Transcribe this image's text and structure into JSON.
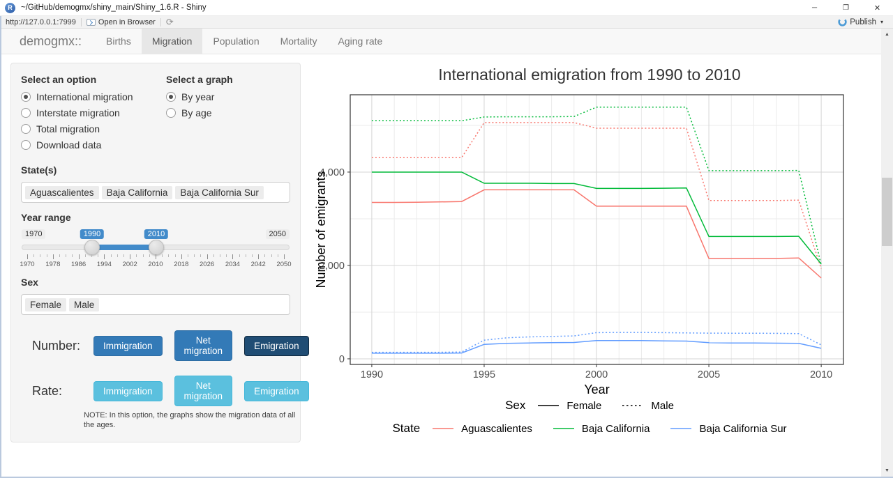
{
  "window": {
    "title": "~/GitHub/demogmx/shiny_main/Shiny_1.6.R - Shiny",
    "app_icon_letter": "R"
  },
  "icons": {
    "minimize": "─",
    "maximize": "❐",
    "close": "✕",
    "refresh": "⟳",
    "dropdown_caret": "▾",
    "scroll_up": "▲",
    "scroll_down": "▼"
  },
  "toolbar": {
    "url": "http://127.0.0.1:7999",
    "open_in_browser": "Open in Browser",
    "publish_label": "Publish"
  },
  "navbar": {
    "brand": "demogmx::",
    "tabs": [
      {
        "label": "Births",
        "active": false
      },
      {
        "label": "Migration",
        "active": true
      },
      {
        "label": "Population",
        "active": false
      },
      {
        "label": "Mortality",
        "active": false
      },
      {
        "label": "Aging rate",
        "active": false
      }
    ]
  },
  "sidebar": {
    "option_group": {
      "label": "Select an option",
      "options": [
        {
          "label": "International migration",
          "selected": true
        },
        {
          "label": "Interstate migration",
          "selected": false
        },
        {
          "label": "Total migration",
          "selected": false
        },
        {
          "label": "Download data",
          "selected": false
        }
      ]
    },
    "graph_group": {
      "label": "Select a graph",
      "options": [
        {
          "label": "By year",
          "selected": true
        },
        {
          "label": "By age",
          "selected": false
        }
      ]
    },
    "states": {
      "label": "State(s)",
      "selected": [
        "Aguascalientes",
        "Baja California",
        "Baja California Sur"
      ]
    },
    "year_range": {
      "label": "Year range",
      "min": 1970,
      "max": 2050,
      "from": 1990,
      "to": 2010,
      "tick_labels": [
        1970,
        1978,
        1986,
        1994,
        2002,
        2010,
        2018,
        2026,
        2034,
        2042,
        2050
      ]
    },
    "sex": {
      "label": "Sex",
      "selected": [
        "Female",
        "Male"
      ]
    },
    "number_row": {
      "label": "Number:",
      "buttons": [
        {
          "label": "Immigration",
          "active": false
        },
        {
          "label": "Net migration",
          "active": false
        },
        {
          "label": "Emigration",
          "active": true
        }
      ]
    },
    "rate_row": {
      "label": "Rate:",
      "buttons": [
        {
          "label": "Immigration",
          "active": false
        },
        {
          "label": "Net migration",
          "active": false
        },
        {
          "label": "Emigration",
          "active": false
        }
      ]
    },
    "note": "NOTE: In this option, the graphs show the migration data of all the ages."
  },
  "chart_data": {
    "type": "line",
    "title": "International emigration from 1990 to 2010",
    "xlabel": "Year",
    "ylabel": "Number of emigrants",
    "x": [
      1990,
      1991,
      1992,
      1993,
      1994,
      1995,
      1996,
      1997,
      1998,
      1999,
      2000,
      2001,
      2002,
      2003,
      2004,
      2005,
      2006,
      2007,
      2008,
      2009,
      2010
    ],
    "xticks": [
      1990,
      1995,
      2000,
      2005,
      2010
    ],
    "yticks": [
      0,
      2000,
      4000
    ],
    "ytick_labels": [
      "0",
      "2,000",
      "4,000"
    ],
    "yticks_minor": [
      1000,
      3000,
      5000
    ],
    "xlim": [
      1989.04,
      2010.99
    ],
    "ylim": [
      -120,
      5656
    ],
    "grid": true,
    "legend_position": "bottom",
    "colors": {
      "Aguascalientes": "#F8766D",
      "Baja California": "#00BA38",
      "Baja California Sur": "#619CFF"
    },
    "series": [
      {
        "name": "Aguascalientes Female",
        "state": "Aguascalientes",
        "sex": "Female",
        "color": "#F8766D",
        "dash": "solid",
        "values": [
          3350,
          3350,
          3355,
          3360,
          3370,
          3620,
          3620,
          3620,
          3620,
          3620,
          3270,
          3270,
          3270,
          3270,
          3270,
          2150,
          2150,
          2150,
          2150,
          2160,
          1730
        ]
      },
      {
        "name": "Aguascalientes Male",
        "state": "Aguascalientes",
        "sex": "Male",
        "color": "#F8766D",
        "dash": "dotted",
        "values": [
          4310,
          4310,
          4310,
          4310,
          4310,
          5060,
          5060,
          5060,
          5060,
          5060,
          4940,
          4940,
          4940,
          4940,
          4940,
          3390,
          3390,
          3390,
          3390,
          3400,
          1930
        ]
      },
      {
        "name": "Baja California Female",
        "state": "Baja California",
        "sex": "Female",
        "color": "#00BA38",
        "dash": "solid",
        "values": [
          4000,
          4000,
          4000,
          4000,
          4000,
          3760,
          3760,
          3760,
          3755,
          3755,
          3650,
          3650,
          3650,
          3655,
          3660,
          2620,
          2620,
          2620,
          2620,
          2625,
          2030
        ]
      },
      {
        "name": "Baja California Male",
        "state": "Baja California",
        "sex": "Male",
        "color": "#00BA38",
        "dash": "dotted",
        "values": [
          5100,
          5100,
          5100,
          5100,
          5100,
          5180,
          5185,
          5185,
          5185,
          5190,
          5390,
          5390,
          5390,
          5390,
          5390,
          4030,
          4030,
          4030,
          4030,
          4035,
          2010
        ]
      },
      {
        "name": "Baja California Sur Female",
        "state": "Baja California Sur",
        "sex": "Female",
        "color": "#619CFF",
        "dash": "solid",
        "values": [
          120,
          120,
          120,
          120,
          125,
          310,
          330,
          340,
          345,
          350,
          390,
          390,
          390,
          385,
          380,
          345,
          340,
          340,
          335,
          330,
          225
        ]
      },
      {
        "name": "Baja California Sur Male",
        "state": "Baja California Sur",
        "sex": "Male",
        "color": "#619CFF",
        "dash": "dotted",
        "values": [
          140,
          140,
          140,
          140,
          145,
          400,
          450,
          470,
          480,
          490,
          560,
          565,
          565,
          560,
          555,
          550,
          548,
          548,
          545,
          540,
          300
        ]
      }
    ],
    "legends": [
      {
        "title": "Sex",
        "items": [
          {
            "label": "Female",
            "color": "#000000",
            "dash": "solid"
          },
          {
            "label": "Male",
            "color": "#000000",
            "dash": "dotted"
          }
        ]
      },
      {
        "title": "State",
        "items": [
          {
            "label": "Aguascalientes",
            "color": "#F8766D",
            "dash": "solid"
          },
          {
            "label": "Baja California",
            "color": "#00BA38",
            "dash": "solid"
          },
          {
            "label": "Baja California Sur",
            "color": "#619CFF",
            "dash": "solid"
          }
        ]
      }
    ]
  }
}
